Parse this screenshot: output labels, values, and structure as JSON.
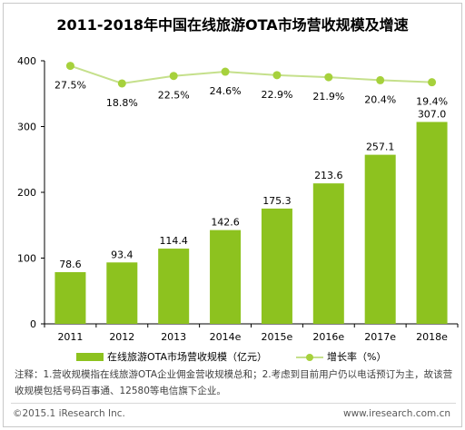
{
  "title": "2011-2018年中国在线旅游OTA市场营收规模及增速",
  "chart_data": {
    "type": "bar",
    "categories": [
      "2011",
      "2012",
      "2013",
      "2014e",
      "2015e",
      "2016e",
      "2017e",
      "2018e"
    ],
    "series": [
      {
        "name": "在线旅游OTA市场营收规模（亿元）",
        "type": "bar",
        "values": [
          78.6,
          93.4,
          114.4,
          142.6,
          175.3,
          213.6,
          257.1,
          307.0
        ],
        "labels": [
          "78.6",
          "93.4",
          "114.4",
          "142.6",
          "175.3",
          "213.6",
          "257.1",
          "307.0"
        ],
        "color": "#8dc21f"
      },
      {
        "name": "增长率（%）",
        "type": "line",
        "values": [
          27.5,
          18.8,
          22.5,
          24.6,
          22.9,
          21.9,
          20.4,
          19.4
        ],
        "labels": [
          "27.5%",
          "18.8%",
          "22.5%",
          "24.6%",
          "22.9%",
          "21.9%",
          "20.4%",
          "19.4%"
        ],
        "color": "#a6d13c"
      }
    ],
    "y_ticks": [
      "0",
      "100",
      "200",
      "300",
      "400"
    ],
    "ylim": [
      0,
      400
    ],
    "line_ylim": [
      -100,
      30
    ],
    "grid": false,
    "legend": "bottom"
  },
  "note": "注释：1.营收规模指在线旅游OTA企业佣金营收规模总和；2.考虑到目前用户仍以电话预订为主，故该营收规模包括号码百事通、12580等电信旗下企业。",
  "footer": {
    "left": "©2015.1 iResearch Inc.",
    "right": "www.iresearch.com.cn"
  }
}
